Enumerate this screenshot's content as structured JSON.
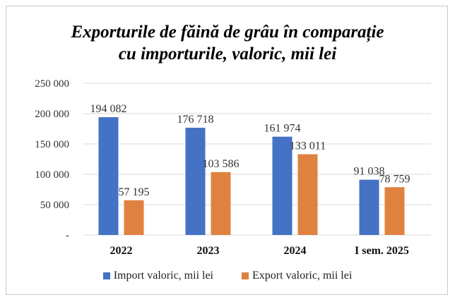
{
  "chart_data": {
    "type": "bar",
    "title_lines": [
      "Exporturile de făină de grâu în comparație",
      "cu importurile, valoric, mii lei"
    ],
    "categories": [
      "2022",
      "2023",
      "2024",
      "I sem. 2025"
    ],
    "series": [
      {
        "name": "Import valoric, mii lei",
        "color": "#4472c4",
        "values": [
          194082,
          176718,
          161974,
          91038
        ]
      },
      {
        "name": "Export valoric, mii lei",
        "color": "#e0823f",
        "values": [
          57195,
          103586,
          133011,
          78759
        ]
      }
    ],
    "data_labels": [
      [
        "194 082",
        "176 718",
        "161 974",
        "91 038"
      ],
      [
        "57 195",
        "103 586",
        "133 011",
        "78 759"
      ]
    ],
    "ytick_labels": [
      "-",
      "50 000",
      "100 000",
      "150 000",
      "200 000",
      "250 000"
    ],
    "ylim": [
      0,
      250000
    ],
    "grid": true,
    "legend_position": "bottom"
  }
}
